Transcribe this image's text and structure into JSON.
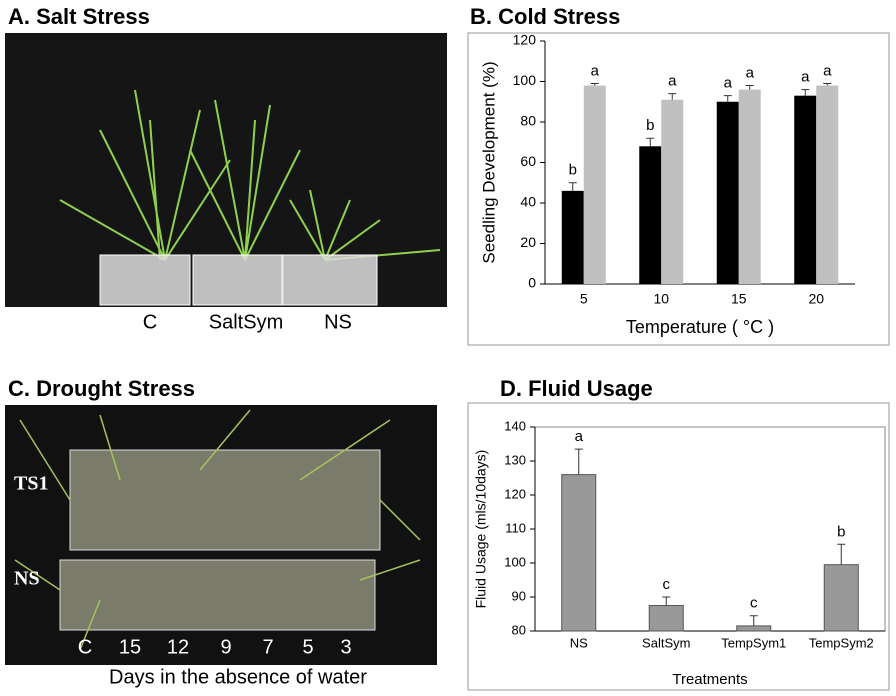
{
  "photo_panels": [
    {
      "title": "A. Salt Stress",
      "labels": [
        "C",
        "SaltSym",
        "NS"
      ]
    },
    {
      "title": "C. Drought Stress",
      "side_labels": [
        "TS1",
        "NS"
      ],
      "labels": [
        "C",
        "15",
        "12",
        "9",
        "7",
        "5",
        "3"
      ],
      "caption": "Days in the absence of water"
    }
  ],
  "chart_data": [
    {
      "type": "bar",
      "title": "B. Cold Stress",
      "x_label": "Temperature ( °C )",
      "y_label": "Seedling Development (%)",
      "categories": [
        "5",
        "10",
        "15",
        "20"
      ],
      "series": [
        {
          "color": "#000000",
          "values": [
            46,
            68,
            90,
            93
          ],
          "errors": [
            4,
            4,
            3,
            3
          ],
          "annotations": [
            "b",
            "b",
            "a",
            "a"
          ]
        },
        {
          "color": "#c0c0c0",
          "values": [
            98,
            91,
            96,
            98
          ],
          "errors": [
            1,
            3,
            2,
            1
          ],
          "annotations": [
            "a",
            "a",
            "a",
            "a"
          ]
        }
      ],
      "ylim": [
        0,
        120
      ],
      "yticks": [
        0,
        20,
        40,
        60,
        80,
        100,
        120
      ]
    },
    {
      "type": "bar",
      "title": "D. Fluid Usage",
      "x_label": "Treatments",
      "y_label": "Fluid Usage (mls/10days)",
      "categories": [
        "NS",
        "SaltSym",
        "TempSym1",
        "TempSym2"
      ],
      "series": [
        {
          "color": "#999999",
          "values": [
            126,
            87.5,
            81.5,
            99.5
          ],
          "errors": [
            7.5,
            2.5,
            3,
            6
          ],
          "annotations": [
            "a",
            "c",
            "c",
            "b"
          ]
        }
      ],
      "ylim": [
        80,
        140
      ],
      "yticks": [
        80,
        90,
        100,
        110,
        120,
        130,
        140
      ]
    }
  ]
}
